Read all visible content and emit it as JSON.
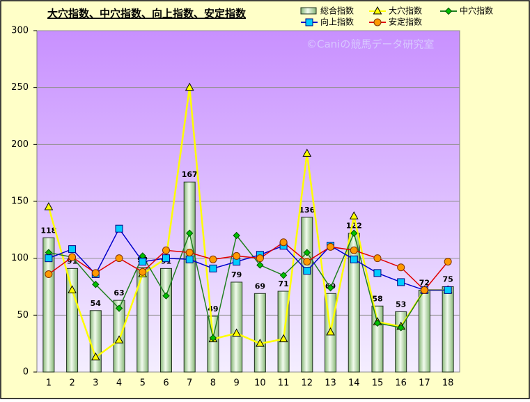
{
  "chart_data": {
    "type": "combo",
    "title": "大穴指数、中穴指数、向上指数、安定指数",
    "watermark": "©Caniの競馬データ研究室",
    "categories": [
      "1",
      "2",
      "3",
      "4",
      "5",
      "6",
      "7",
      "8",
      "9",
      "10",
      "11",
      "12",
      "13",
      "14",
      "15",
      "16",
      "17",
      "18"
    ],
    "ylim": [
      0,
      300
    ],
    "yticks": [
      0,
      50,
      100,
      150,
      200,
      250,
      300
    ],
    "grid": true,
    "series": [
      {
        "name": "総合指数",
        "type": "bar",
        "color": "#cfe8c0",
        "values": [
          118,
          91,
          54,
          63,
          92,
          91,
          167,
          49,
          79,
          69,
          71,
          136,
          69,
          122,
          58,
          53,
          72,
          75
        ]
      },
      {
        "name": "大穴指数",
        "type": "line",
        "marker": "triangle",
        "color": "#ffff00",
        "values": [
          145,
          72,
          13,
          28,
          86,
          100,
          250,
          29,
          34,
          25,
          29,
          192,
          35,
          137,
          44,
          40,
          72,
          72
        ]
      },
      {
        "name": "中穴指数",
        "type": "line",
        "marker": "diamond",
        "color": "#208020",
        "values": [
          105,
          101,
          77,
          56,
          102,
          67,
          122,
          30,
          120,
          94,
          85,
          105,
          74,
          122,
          43,
          39,
          72,
          72
        ]
      },
      {
        "name": "向上指数",
        "type": "line",
        "marker": "square",
        "color": "#0000cc",
        "values": [
          100,
          108,
          86,
          126,
          97,
          100,
          99,
          91,
          97,
          103,
          111,
          89,
          111,
          99,
          87,
          79,
          72,
          72
        ]
      },
      {
        "name": "安定指数",
        "type": "line",
        "marker": "circle",
        "color": "#e00000",
        "values": [
          86,
          101,
          87,
          100,
          88,
          107,
          105,
          99,
          102,
          100,
          114,
          97,
          110,
          107,
          100,
          92,
          72,
          97
        ]
      }
    ]
  }
}
